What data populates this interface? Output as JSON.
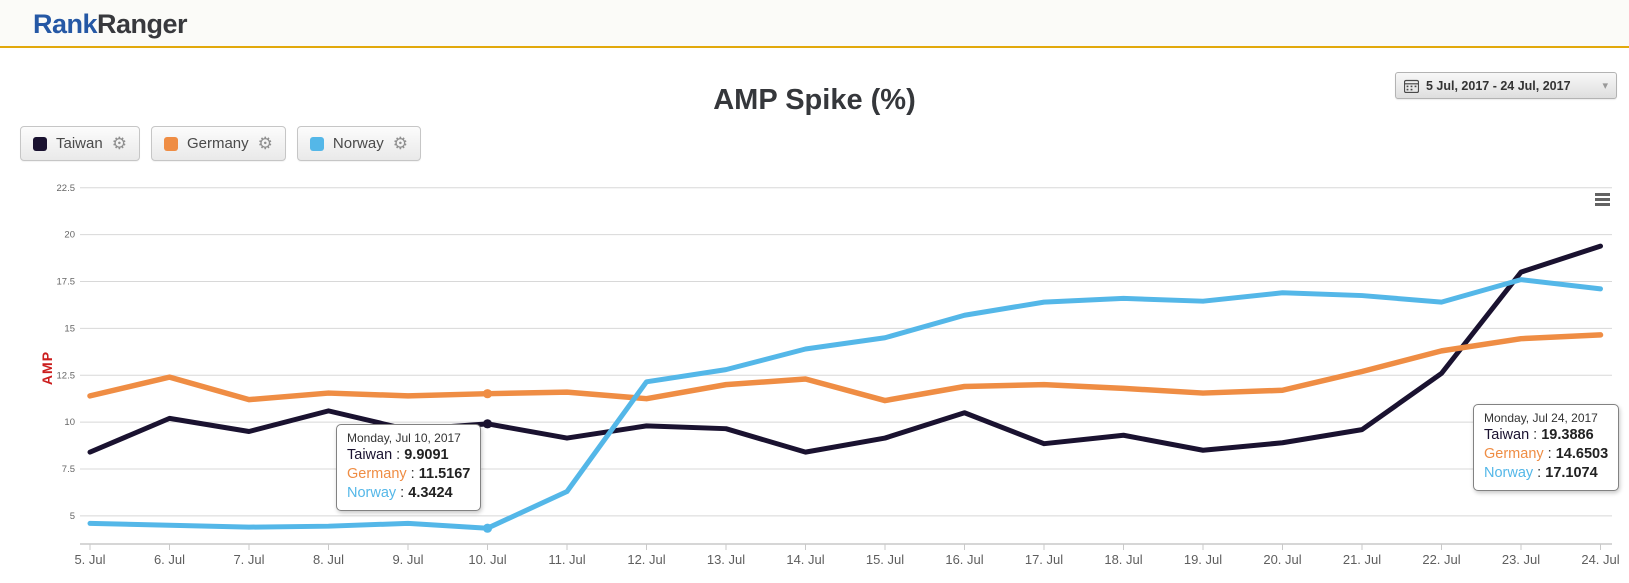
{
  "header": {
    "logo_primary": "Rank",
    "logo_secondary": "Ranger"
  },
  "toolbar": {
    "date_range": "5 Jul, 2017 - 24 Jul, 2017"
  },
  "icons": {
    "gear": "⚙",
    "caret": "▾"
  },
  "ui": {
    "separator": " : "
  },
  "legend": {
    "items": [
      {
        "label": "Taiwan"
      },
      {
        "label": "Germany"
      },
      {
        "label": "Norway"
      }
    ]
  },
  "chart_data": {
    "type": "line",
    "title": "AMP Spike (%)",
    "ylabel": "AMP",
    "ylabel_color": "#cb1d1d",
    "ylim": [
      3.5,
      23
    ],
    "yticks": [
      5,
      7.5,
      10,
      12.5,
      15,
      17.5,
      20,
      22.5
    ],
    "grid": true,
    "legend_position": "top-left",
    "marker_index": 5,
    "categories": [
      "5. Jul",
      "6. Jul",
      "7. Jul",
      "8. Jul",
      "9. Jul",
      "10. Jul",
      "11. Jul",
      "12. Jul",
      "13. Jul",
      "14. Jul",
      "15. Jul",
      "16. Jul",
      "17. Jul",
      "18. Jul",
      "19. Jul",
      "20. Jul",
      "21. Jul",
      "22. Jul",
      "23. Jul",
      "24. Jul"
    ],
    "series": [
      {
        "name": "Taiwan",
        "color": "#1a1230",
        "values": [
          8.4,
          10.2,
          9.5,
          10.6,
          9.6,
          9.9091,
          9.15,
          9.8,
          9.65,
          8.4,
          9.15,
          10.5,
          8.85,
          9.3,
          8.5,
          8.9,
          9.6,
          12.6,
          18.0,
          19.3886
        ]
      },
      {
        "name": "Germany",
        "color": "#ef8d44",
        "values": [
          11.4,
          12.4,
          11.2,
          11.55,
          11.4,
          11.5167,
          11.6,
          11.25,
          12.0,
          12.3,
          11.15,
          11.9,
          12.0,
          11.8,
          11.55,
          11.7,
          12.7,
          13.8,
          14.45,
          14.6503
        ]
      },
      {
        "name": "Norway",
        "color": "#54b7e8",
        "values": [
          4.6,
          4.5,
          4.4,
          4.45,
          4.6,
          4.3424,
          6.3,
          12.15,
          12.8,
          13.9,
          14.5,
          15.7,
          16.4,
          16.6,
          16.45,
          16.9,
          16.75,
          16.4,
          17.6,
          17.1074
        ]
      }
    ]
  },
  "tooltips": [
    {
      "date": "Monday, Jul 10, 2017",
      "rows": [
        {
          "name": "Taiwan",
          "value": "9.9091"
        },
        {
          "name": "Germany",
          "value": "11.5167"
        },
        {
          "name": "Norway",
          "value": "4.3424"
        }
      ]
    },
    {
      "date": "Monday, Jul 24, 2017",
      "rows": [
        {
          "name": "Taiwan",
          "value": "19.3886"
        },
        {
          "name": "Germany",
          "value": "14.6503"
        },
        {
          "name": "Norway",
          "value": "17.1074"
        }
      ]
    }
  ]
}
